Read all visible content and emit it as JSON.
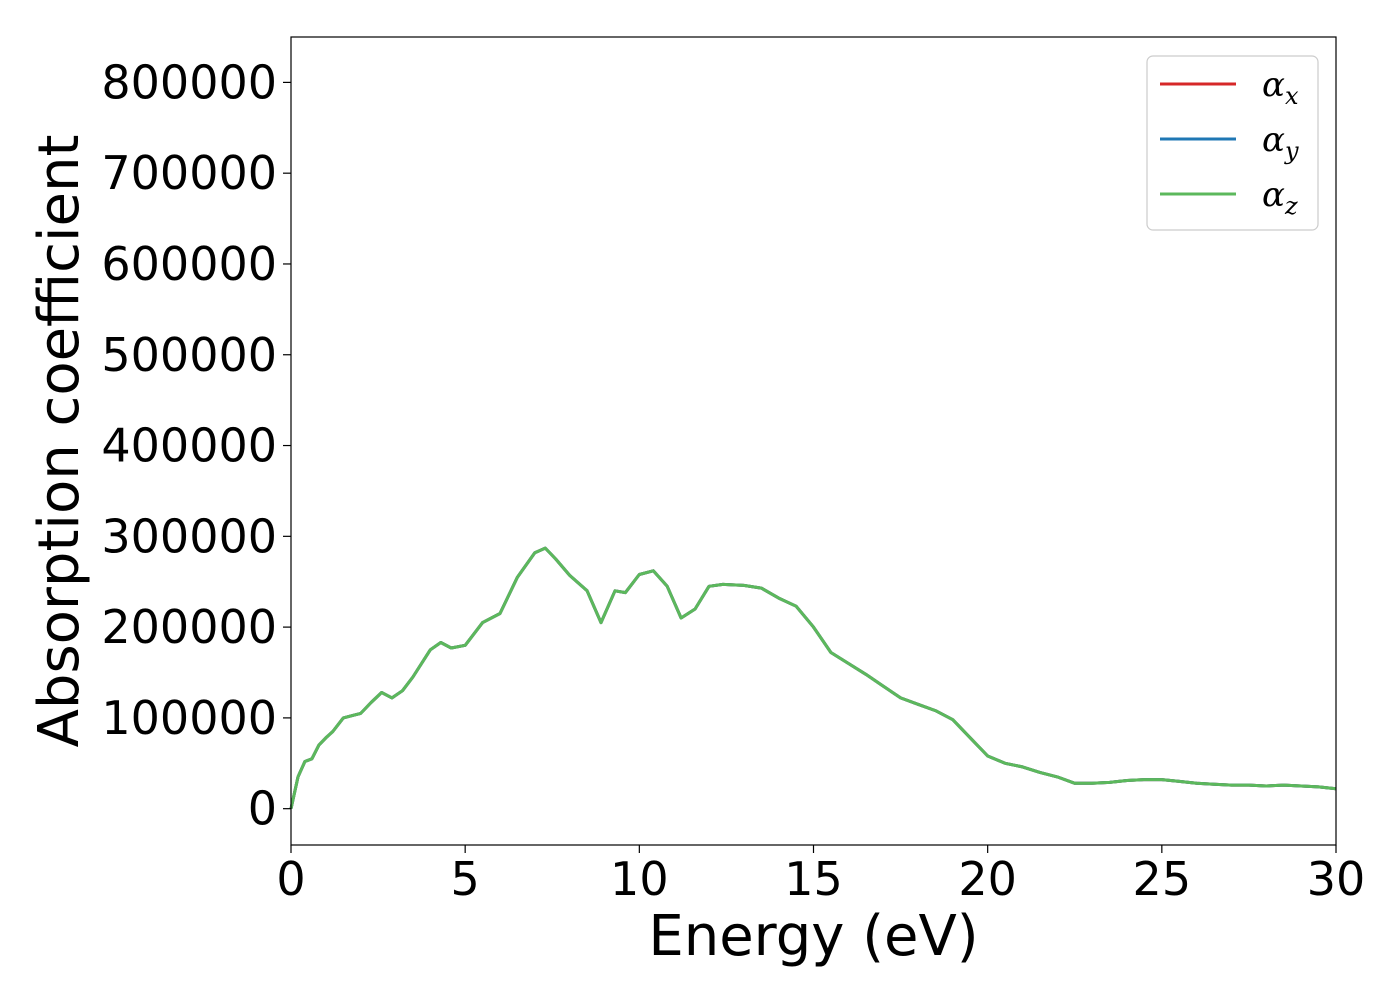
{
  "chart_data": {
    "type": "line",
    "title": "",
    "xlabel": "Energy (eV)",
    "ylabel": "Absorption coefficient",
    "xlim": [
      0,
      30
    ],
    "ylim": [
      -40000,
      850000
    ],
    "x_ticks": [
      0,
      5,
      10,
      15,
      20,
      25,
      30
    ],
    "y_ticks": [
      0,
      100000,
      200000,
      300000,
      400000,
      500000,
      600000,
      700000,
      800000
    ],
    "grid": false,
    "legend_position": "top-right",
    "series": [
      {
        "name": "α_x",
        "color": "#d62728",
        "x": [
          0,
          0.2,
          0.4,
          0.6,
          0.8,
          1.0,
          1.2,
          1.5,
          1.8,
          2.0,
          2.3,
          2.6,
          2.9,
          3.2,
          3.5,
          4.0,
          4.3,
          4.6,
          5.0,
          5.5,
          6.0,
          6.5,
          7.0,
          7.3,
          7.6,
          8.0,
          8.5,
          8.9,
          9.3,
          9.6,
          10.0,
          10.4,
          10.8,
          11.2,
          11.6,
          12.0,
          12.4,
          13.0,
          13.5,
          14.0,
          14.5,
          15.0,
          15.5,
          16.0,
          16.5,
          17.0,
          17.5,
          18.0,
          18.5,
          19.0,
          19.5,
          20.0,
          20.5,
          21.0,
          21.5,
          22.0,
          22.5,
          23.0,
          23.5,
          24.0,
          24.5,
          25.0,
          25.5,
          26.0,
          26.5,
          27.0,
          27.5,
          28.0,
          28.5,
          29.0,
          29.5,
          30.0
        ],
        "values": [
          0,
          35000,
          52000,
          55000,
          70000,
          78000,
          85000,
          100000,
          103000,
          105000,
          117000,
          128000,
          122000,
          130000,
          145000,
          175000,
          183000,
          177000,
          180000,
          205000,
          215000,
          255000,
          282000,
          287000,
          275000,
          257000,
          240000,
          205000,
          240000,
          238000,
          258000,
          262000,
          245000,
          210000,
          220000,
          245000,
          247000,
          246000,
          243000,
          232000,
          223000,
          200000,
          172000,
          160000,
          148000,
          135000,
          122000,
          115000,
          108000,
          98000,
          78000,
          58000,
          50000,
          46000,
          40000,
          35000,
          28000,
          28000,
          29000,
          31000,
          32000,
          32000,
          30000,
          28000,
          27000,
          26000,
          26000,
          25000,
          26000,
          25000,
          24000,
          22000
        ]
      },
      {
        "name": "α_y",
        "color": "#1f77b4",
        "x": [
          0,
          0.2,
          0.4,
          0.6,
          0.8,
          1.0,
          1.2,
          1.5,
          1.8,
          2.0,
          2.3,
          2.6,
          2.9,
          3.2,
          3.5,
          4.0,
          4.3,
          4.6,
          5.0,
          5.5,
          6.0,
          6.5,
          7.0,
          7.3,
          7.6,
          8.0,
          8.5,
          8.9,
          9.3,
          9.6,
          10.0,
          10.4,
          10.8,
          11.2,
          11.6,
          12.0,
          12.4,
          13.0,
          13.5,
          14.0,
          14.5,
          15.0,
          15.5,
          16.0,
          16.5,
          17.0,
          17.5,
          18.0,
          18.5,
          19.0,
          19.5,
          20.0,
          20.5,
          21.0,
          21.5,
          22.0,
          22.5,
          23.0,
          23.5,
          24.0,
          24.5,
          25.0,
          25.5,
          26.0,
          26.5,
          27.0,
          27.5,
          28.0,
          28.5,
          29.0,
          29.5,
          30.0
        ],
        "values": [
          0,
          35000,
          52000,
          55000,
          70000,
          78000,
          85000,
          100000,
          103000,
          105000,
          117000,
          128000,
          122000,
          130000,
          145000,
          175000,
          183000,
          177000,
          180000,
          205000,
          215000,
          255000,
          282000,
          287000,
          275000,
          257000,
          240000,
          205000,
          240000,
          238000,
          258000,
          262000,
          245000,
          210000,
          220000,
          245000,
          247000,
          246000,
          243000,
          232000,
          223000,
          200000,
          172000,
          160000,
          148000,
          135000,
          122000,
          115000,
          108000,
          98000,
          78000,
          58000,
          50000,
          46000,
          40000,
          35000,
          28000,
          28000,
          29000,
          31000,
          32000,
          32000,
          30000,
          28000,
          27000,
          26000,
          26000,
          25000,
          26000,
          25000,
          24000,
          22000
        ]
      },
      {
        "name": "α_z",
        "color": "#5cb85c",
        "x": [
          0,
          0.2,
          0.4,
          0.6,
          0.8,
          1.0,
          1.2,
          1.5,
          1.8,
          2.0,
          2.3,
          2.6,
          2.9,
          3.2,
          3.5,
          4.0,
          4.3,
          4.6,
          5.0,
          5.5,
          6.0,
          6.5,
          7.0,
          7.3,
          7.6,
          8.0,
          8.5,
          8.9,
          9.3,
          9.6,
          10.0,
          10.4,
          10.8,
          11.2,
          11.6,
          12.0,
          12.4,
          13.0,
          13.5,
          14.0,
          14.5,
          15.0,
          15.5,
          16.0,
          16.5,
          17.0,
          17.5,
          18.0,
          18.5,
          19.0,
          19.5,
          20.0,
          20.5,
          21.0,
          21.5,
          22.0,
          22.5,
          23.0,
          23.5,
          24.0,
          24.5,
          25.0,
          25.5,
          26.0,
          26.5,
          27.0,
          27.5,
          28.0,
          28.5,
          29.0,
          29.5,
          30.0
        ],
        "values": [
          0,
          35000,
          52000,
          55000,
          70000,
          78000,
          85000,
          100000,
          103000,
          105000,
          117000,
          128000,
          122000,
          130000,
          145000,
          175000,
          183000,
          177000,
          180000,
          205000,
          215000,
          255000,
          282000,
          287000,
          275000,
          257000,
          240000,
          205000,
          240000,
          238000,
          258000,
          262000,
          245000,
          210000,
          220000,
          245000,
          247000,
          246000,
          243000,
          232000,
          223000,
          200000,
          172000,
          160000,
          148000,
          135000,
          122000,
          115000,
          108000,
          98000,
          78000,
          58000,
          50000,
          46000,
          40000,
          35000,
          28000,
          28000,
          29000,
          31000,
          32000,
          32000,
          30000,
          28000,
          27000,
          26000,
          26000,
          25000,
          26000,
          25000,
          24000,
          22000
        ]
      }
    ]
  }
}
